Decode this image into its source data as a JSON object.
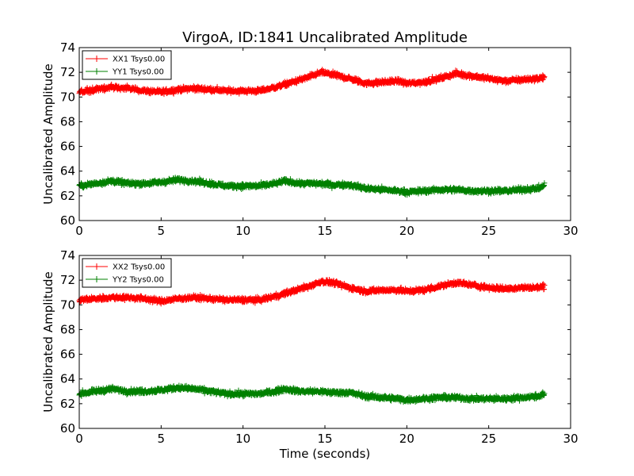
{
  "figure": {
    "title": "VirgoA, ID:1841 Uncalibrated Amplitude",
    "xlabel": "Time (seconds)"
  },
  "chart_data": [
    {
      "type": "scatter",
      "title": "VirgoA, ID:1841 Uncalibrated Amplitude",
      "xlabel": "",
      "ylabel": "Uncalibrated Amplitude",
      "xlim": [
        0,
        30
      ],
      "ylim": [
        60,
        74
      ],
      "xticks": [
        "0",
        "5",
        "10",
        "15",
        "20",
        "25",
        "30"
      ],
      "yticks": [
        "60",
        "62",
        "64",
        "66",
        "68",
        "70",
        "72",
        "74"
      ],
      "legend_position": "top-left",
      "grid": false,
      "marker": "plus",
      "x_range": [
        0,
        28.4
      ],
      "series": [
        {
          "name": "XX1 Tsys0.00",
          "color": "#ff0000",
          "trend": [
            [
              0,
              70.4
            ],
            [
              1,
              70.6
            ],
            [
              2,
              70.8
            ],
            [
              3,
              70.7
            ],
            [
              4,
              70.5
            ],
            [
              5,
              70.4
            ],
            [
              6,
              70.6
            ],
            [
              7,
              70.7
            ],
            [
              8,
              70.6
            ],
            [
              9,
              70.5
            ],
            [
              10,
              70.5
            ],
            [
              11,
              70.5
            ],
            [
              12,
              70.8
            ],
            [
              13,
              71.2
            ],
            [
              14,
              71.6
            ],
            [
              14.8,
              72.0
            ],
            [
              15.5,
              71.8
            ],
            [
              16.5,
              71.5
            ],
            [
              17.5,
              71.1
            ],
            [
              18.5,
              71.2
            ],
            [
              19.5,
              71.3
            ],
            [
              20,
              71.1
            ],
            [
              21,
              71.2
            ],
            [
              22,
              71.5
            ],
            [
              23,
              71.9
            ],
            [
              24,
              71.7
            ],
            [
              25,
              71.5
            ],
            [
              26,
              71.3
            ],
            [
              27,
              71.4
            ],
            [
              28,
              71.5
            ],
            [
              28.4,
              71.6
            ]
          ]
        },
        {
          "name": "YY1 Tsys0.00",
          "color": "#008000",
          "trend": [
            [
              0,
              62.8
            ],
            [
              1,
              63.0
            ],
            [
              2,
              63.2
            ],
            [
              3,
              63.0
            ],
            [
              4,
              63.0
            ],
            [
              5,
              63.1
            ],
            [
              6,
              63.3
            ],
            [
              7,
              63.2
            ],
            [
              8,
              63.0
            ],
            [
              9,
              62.8
            ],
            [
              10,
              62.8
            ],
            [
              11,
              62.8
            ],
            [
              12,
              63.0
            ],
            [
              12.5,
              63.2
            ],
            [
              13.5,
              63.0
            ],
            [
              14.5,
              63.0
            ],
            [
              15.5,
              62.9
            ],
            [
              16.5,
              62.9
            ],
            [
              17.5,
              62.6
            ],
            [
              18.5,
              62.5
            ],
            [
              19.5,
              62.4
            ],
            [
              20,
              62.3
            ],
            [
              21,
              62.4
            ],
            [
              22,
              62.5
            ],
            [
              23,
              62.5
            ],
            [
              24,
              62.4
            ],
            [
              25,
              62.4
            ],
            [
              26,
              62.4
            ],
            [
              27,
              62.5
            ],
            [
              28,
              62.6
            ],
            [
              28.4,
              62.8
            ]
          ]
        }
      ]
    },
    {
      "type": "scatter",
      "title": "",
      "xlabel": "Time (seconds)",
      "ylabel": "Uncalibrated Amplitude",
      "xlim": [
        0,
        30
      ],
      "ylim": [
        60,
        74
      ],
      "xticks": [
        "0",
        "5",
        "10",
        "15",
        "20",
        "25",
        "30"
      ],
      "yticks": [
        "60",
        "62",
        "64",
        "66",
        "68",
        "70",
        "72",
        "74"
      ],
      "legend_position": "top-left",
      "grid": false,
      "marker": "plus",
      "x_range": [
        0,
        28.4
      ],
      "series": [
        {
          "name": "XX2 Tsys0.00",
          "color": "#ff0000",
          "trend": [
            [
              0,
              70.4
            ],
            [
              1,
              70.5
            ],
            [
              2,
              70.6
            ],
            [
              3,
              70.6
            ],
            [
              4,
              70.5
            ],
            [
              5,
              70.3
            ],
            [
              6,
              70.5
            ],
            [
              7,
              70.6
            ],
            [
              8,
              70.5
            ],
            [
              9,
              70.4
            ],
            [
              10,
              70.4
            ],
            [
              11,
              70.4
            ],
            [
              12,
              70.7
            ],
            [
              13,
              71.1
            ],
            [
              14,
              71.5
            ],
            [
              14.8,
              71.9
            ],
            [
              15.5,
              71.8
            ],
            [
              16.5,
              71.4
            ],
            [
              17.5,
              71.1
            ],
            [
              18.5,
              71.2
            ],
            [
              19.5,
              71.2
            ],
            [
              20,
              71.1
            ],
            [
              21,
              71.2
            ],
            [
              22,
              71.5
            ],
            [
              23,
              71.8
            ],
            [
              24,
              71.6
            ],
            [
              25,
              71.4
            ],
            [
              26,
              71.3
            ],
            [
              27,
              71.4
            ],
            [
              28,
              71.4
            ],
            [
              28.4,
              71.5
            ]
          ]
        },
        {
          "name": "YY2 Tsys0.00",
          "color": "#008000",
          "trend": [
            [
              0,
              62.8
            ],
            [
              1,
              63.0
            ],
            [
              2,
              63.2
            ],
            [
              3,
              63.0
            ],
            [
              4,
              63.0
            ],
            [
              5,
              63.1
            ],
            [
              6,
              63.3
            ],
            [
              7,
              63.2
            ],
            [
              8,
              63.0
            ],
            [
              9,
              62.8
            ],
            [
              10,
              62.8
            ],
            [
              11,
              62.8
            ],
            [
              12,
              63.0
            ],
            [
              12.5,
              63.2
            ],
            [
              13.5,
              63.0
            ],
            [
              14.5,
              63.0
            ],
            [
              15.5,
              62.9
            ],
            [
              16.5,
              62.9
            ],
            [
              17.5,
              62.6
            ],
            [
              18.5,
              62.5
            ],
            [
              19.5,
              62.4
            ],
            [
              20,
              62.3
            ],
            [
              21,
              62.4
            ],
            [
              22,
              62.5
            ],
            [
              23,
              62.5
            ],
            [
              24,
              62.4
            ],
            [
              25,
              62.4
            ],
            [
              26,
              62.4
            ],
            [
              27,
              62.5
            ],
            [
              28,
              62.6
            ],
            [
              28.4,
              62.8
            ]
          ]
        }
      ]
    }
  ]
}
